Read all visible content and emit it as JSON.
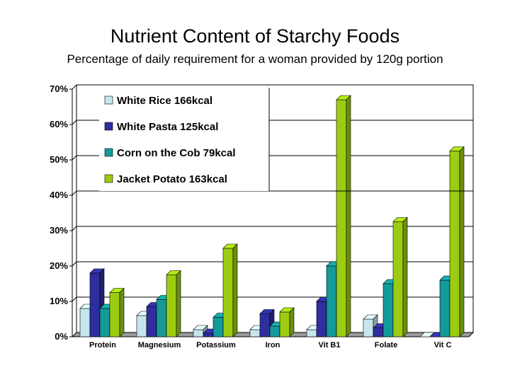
{
  "chart_data": {
    "type": "bar",
    "title": "Nutrient Content of Starchy Foods",
    "subtitle": "Percentage of daily requirement for a woman provided by 120g portion",
    "xlabel": "",
    "ylabel": "",
    "ylim": [
      0,
      70
    ],
    "yticks": [
      "0%",
      "10%",
      "20%",
      "30%",
      "40%",
      "50%",
      "60%",
      "70%"
    ],
    "categories": [
      "Protein",
      "Magnesium",
      "Potassium",
      "Iron",
      "Vit B1",
      "Folate",
      "Vit C"
    ],
    "series": [
      {
        "name": "White Rice 166kcal",
        "color": "#c6e6ee",
        "values": [
          8,
          6,
          2,
          2,
          2,
          5,
          0
        ]
      },
      {
        "name": "White Pasta 125kcal",
        "color": "#2e2e9e",
        "values": [
          18,
          8.5,
          1,
          6.5,
          10,
          2.5,
          0
        ]
      },
      {
        "name": "Corn on the Cob 79kcal",
        "color": "#149a9a",
        "values": [
          8,
          10.5,
          5.5,
          3,
          20,
          15,
          16
        ]
      },
      {
        "name": "Jacket Potato 163kcal",
        "color": "#9ccc12",
        "values": [
          12.5,
          17.5,
          25,
          7,
          67,
          32.5,
          52.5
        ]
      }
    ],
    "legend_position": "top-left",
    "grid": true
  }
}
